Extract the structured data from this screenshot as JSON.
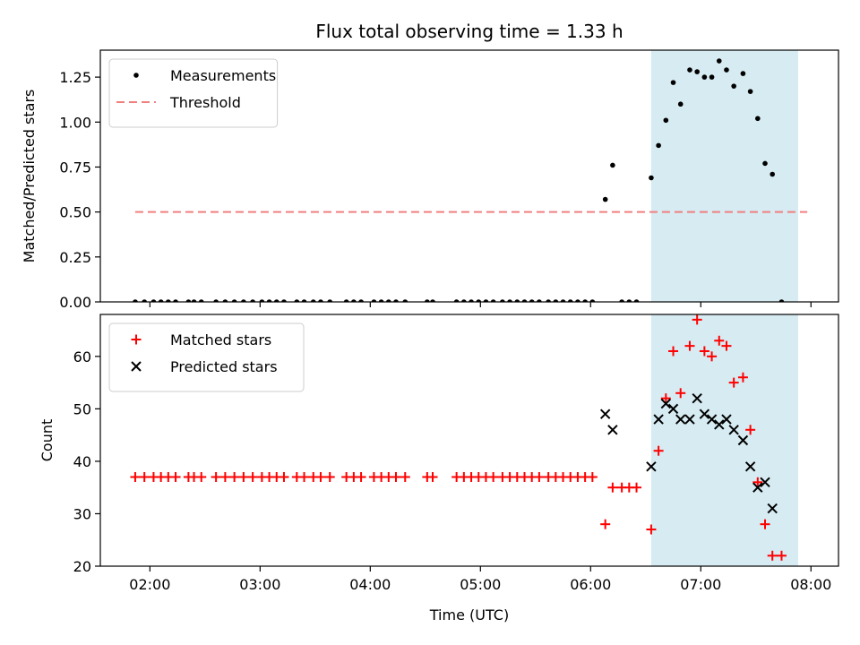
{
  "chart_data": [
    {
      "type": "scatter",
      "title": "Flux total observing time = 1.33 h",
      "xlabel": "",
      "ylabel": "Matched/Predicted stars",
      "xlim": [
        "01:33",
        "08:15"
      ],
      "ylim": [
        0,
        1.4
      ],
      "yticks": [
        "0.00",
        "0.25",
        "0.50",
        "0.75",
        "1.00",
        "1.25"
      ],
      "xticks": [
        "02:00",
        "03:00",
        "04:00",
        "05:00",
        "06:00",
        "07:00",
        "08:00"
      ],
      "xtick_labels_visible": false,
      "highlight_span": {
        "start": "06:33",
        "end": "07:53",
        "color": "#add8e6"
      },
      "legend_position": "upper-left",
      "series": [
        {
          "name": "Measurements",
          "marker": "dot",
          "color": "#000000",
          "points": [
            [
              "01:52",
              0
            ],
            [
              "01:57",
              0
            ],
            [
              "02:02",
              0
            ],
            [
              "02:06",
              0
            ],
            [
              "02:10",
              0
            ],
            [
              "02:14",
              0
            ],
            [
              "02:21",
              0
            ],
            [
              "02:24",
              0
            ],
            [
              "02:28",
              0
            ],
            [
              "02:36",
              0
            ],
            [
              "02:41",
              0
            ],
            [
              "02:46",
              0
            ],
            [
              "02:51",
              0
            ],
            [
              "02:56",
              0
            ],
            [
              "03:01",
              0
            ],
            [
              "03:05",
              0
            ],
            [
              "03:09",
              0
            ],
            [
              "03:13",
              0
            ],
            [
              "03:20",
              0
            ],
            [
              "03:24",
              0
            ],
            [
              "03:29",
              0
            ],
            [
              "03:33",
              0
            ],
            [
              "03:38",
              0
            ],
            [
              "03:47",
              0
            ],
            [
              "03:51",
              0
            ],
            [
              "03:55",
              0
            ],
            [
              "04:02",
              0
            ],
            [
              "04:06",
              0
            ],
            [
              "04:10",
              0
            ],
            [
              "04:14",
              0
            ],
            [
              "04:19",
              0
            ],
            [
              "04:31",
              0
            ],
            [
              "04:34",
              0
            ],
            [
              "04:47",
              0
            ],
            [
              "04:51",
              0
            ],
            [
              "04:55",
              0
            ],
            [
              "04:59",
              0
            ],
            [
              "05:03",
              0
            ],
            [
              "05:07",
              0
            ],
            [
              "05:12",
              0
            ],
            [
              "05:16",
              0
            ],
            [
              "05:20",
              0
            ],
            [
              "05:24",
              0
            ],
            [
              "05:28",
              0
            ],
            [
              "05:32",
              0
            ],
            [
              "05:37",
              0
            ],
            [
              "05:41",
              0
            ],
            [
              "05:45",
              0
            ],
            [
              "05:49",
              0
            ],
            [
              "05:53",
              0
            ],
            [
              "05:57",
              0
            ],
            [
              "06:01",
              0
            ],
            [
              "06:08",
              0.57
            ],
            [
              "06:12",
              0.76
            ],
            [
              "06:17",
              0
            ],
            [
              "06:21",
              0
            ],
            [
              "06:25",
              0
            ],
            [
              "06:33",
              0.69
            ],
            [
              "06:37",
              0.87
            ],
            [
              "06:41",
              1.01
            ],
            [
              "06:45",
              1.22
            ],
            [
              "06:49",
              1.1
            ],
            [
              "06:54",
              1.29
            ],
            [
              "06:58",
              1.28
            ],
            [
              "07:02",
              1.25
            ],
            [
              "07:06",
              1.25
            ],
            [
              "07:10",
              1.34
            ],
            [
              "07:14",
              1.29
            ],
            [
              "07:18",
              1.2
            ],
            [
              "07:23",
              1.27
            ],
            [
              "07:27",
              1.17
            ],
            [
              "07:31",
              1.02
            ],
            [
              "07:35",
              0.77
            ],
            [
              "07:39",
              0.71
            ],
            [
              "07:44",
              0
            ]
          ]
        },
        {
          "name": "Threshold",
          "marker": "dashed-line",
          "color": "#f08080",
          "points": [
            [
              "01:52",
              0.5
            ],
            [
              "07:58",
              0.5
            ]
          ]
        }
      ]
    },
    {
      "type": "scatter",
      "title": "",
      "xlabel": "Time (UTC)",
      "ylabel": "Count",
      "xlim": [
        "01:33",
        "08:15"
      ],
      "ylim": [
        20,
        68
      ],
      "yticks": [
        "20",
        "30",
        "40",
        "50",
        "60"
      ],
      "xticks": [
        "02:00",
        "03:00",
        "04:00",
        "05:00",
        "06:00",
        "07:00",
        "08:00"
      ],
      "xtick_labels_visible": true,
      "highlight_span": {
        "start": "06:33",
        "end": "07:53",
        "color": "#add8e6"
      },
      "legend_position": "upper-left",
      "series": [
        {
          "name": "Matched stars",
          "marker": "plus",
          "color": "#ff0000",
          "points": [
            [
              "01:52",
              37
            ],
            [
              "01:57",
              37
            ],
            [
              "02:02",
              37
            ],
            [
              "02:06",
              37
            ],
            [
              "02:10",
              37
            ],
            [
              "02:14",
              37
            ],
            [
              "02:21",
              37
            ],
            [
              "02:24",
              37
            ],
            [
              "02:28",
              37
            ],
            [
              "02:36",
              37
            ],
            [
              "02:41",
              37
            ],
            [
              "02:46",
              37
            ],
            [
              "02:51",
              37
            ],
            [
              "02:56",
              37
            ],
            [
              "03:01",
              37
            ],
            [
              "03:05",
              37
            ],
            [
              "03:09",
              37
            ],
            [
              "03:13",
              37
            ],
            [
              "03:20",
              37
            ],
            [
              "03:24",
              37
            ],
            [
              "03:29",
              37
            ],
            [
              "03:33",
              37
            ],
            [
              "03:38",
              37
            ],
            [
              "03:47",
              37
            ],
            [
              "03:51",
              37
            ],
            [
              "03:55",
              37
            ],
            [
              "04:02",
              37
            ],
            [
              "04:06",
              37
            ],
            [
              "04:10",
              37
            ],
            [
              "04:14",
              37
            ],
            [
              "04:19",
              37
            ],
            [
              "04:31",
              37
            ],
            [
              "04:34",
              37
            ],
            [
              "04:47",
              37
            ],
            [
              "04:51",
              37
            ],
            [
              "04:55",
              37
            ],
            [
              "04:59",
              37
            ],
            [
              "05:03",
              37
            ],
            [
              "05:07",
              37
            ],
            [
              "05:12",
              37
            ],
            [
              "05:16",
              37
            ],
            [
              "05:20",
              37
            ],
            [
              "05:24",
              37
            ],
            [
              "05:28",
              37
            ],
            [
              "05:32",
              37
            ],
            [
              "05:37",
              37
            ],
            [
              "05:41",
              37
            ],
            [
              "05:45",
              37
            ],
            [
              "05:49",
              37
            ],
            [
              "05:53",
              37
            ],
            [
              "05:57",
              37
            ],
            [
              "06:01",
              37
            ],
            [
              "06:08",
              28
            ],
            [
              "06:12",
              35
            ],
            [
              "06:17",
              35
            ],
            [
              "06:21",
              35
            ],
            [
              "06:25",
              35
            ],
            [
              "06:33",
              27
            ],
            [
              "06:37",
              42
            ],
            [
              "06:41",
              52
            ],
            [
              "06:45",
              61
            ],
            [
              "06:49",
              53
            ],
            [
              "06:54",
              62
            ],
            [
              "06:58",
              67
            ],
            [
              "07:02",
              61
            ],
            [
              "07:06",
              60
            ],
            [
              "07:10",
              63
            ],
            [
              "07:14",
              62
            ],
            [
              "07:18",
              55
            ],
            [
              "07:23",
              56
            ],
            [
              "07:27",
              46
            ],
            [
              "07:31",
              36
            ],
            [
              "07:35",
              28
            ],
            [
              "07:39",
              22
            ],
            [
              "07:44",
              22
            ]
          ]
        },
        {
          "name": "Predicted stars",
          "marker": "x",
          "color": "#000000",
          "points": [
            [
              "06:08",
              49
            ],
            [
              "06:12",
              46
            ],
            [
              "06:33",
              39
            ],
            [
              "06:37",
              48
            ],
            [
              "06:41",
              51
            ],
            [
              "06:45",
              50
            ],
            [
              "06:49",
              48
            ],
            [
              "06:54",
              48
            ],
            [
              "06:58",
              52
            ],
            [
              "07:02",
              49
            ],
            [
              "07:06",
              48
            ],
            [
              "07:10",
              47
            ],
            [
              "07:14",
              48
            ],
            [
              "07:18",
              46
            ],
            [
              "07:23",
              44
            ],
            [
              "07:27",
              39
            ],
            [
              "07:31",
              35
            ],
            [
              "07:35",
              36
            ],
            [
              "07:39",
              31
            ]
          ]
        }
      ]
    }
  ]
}
